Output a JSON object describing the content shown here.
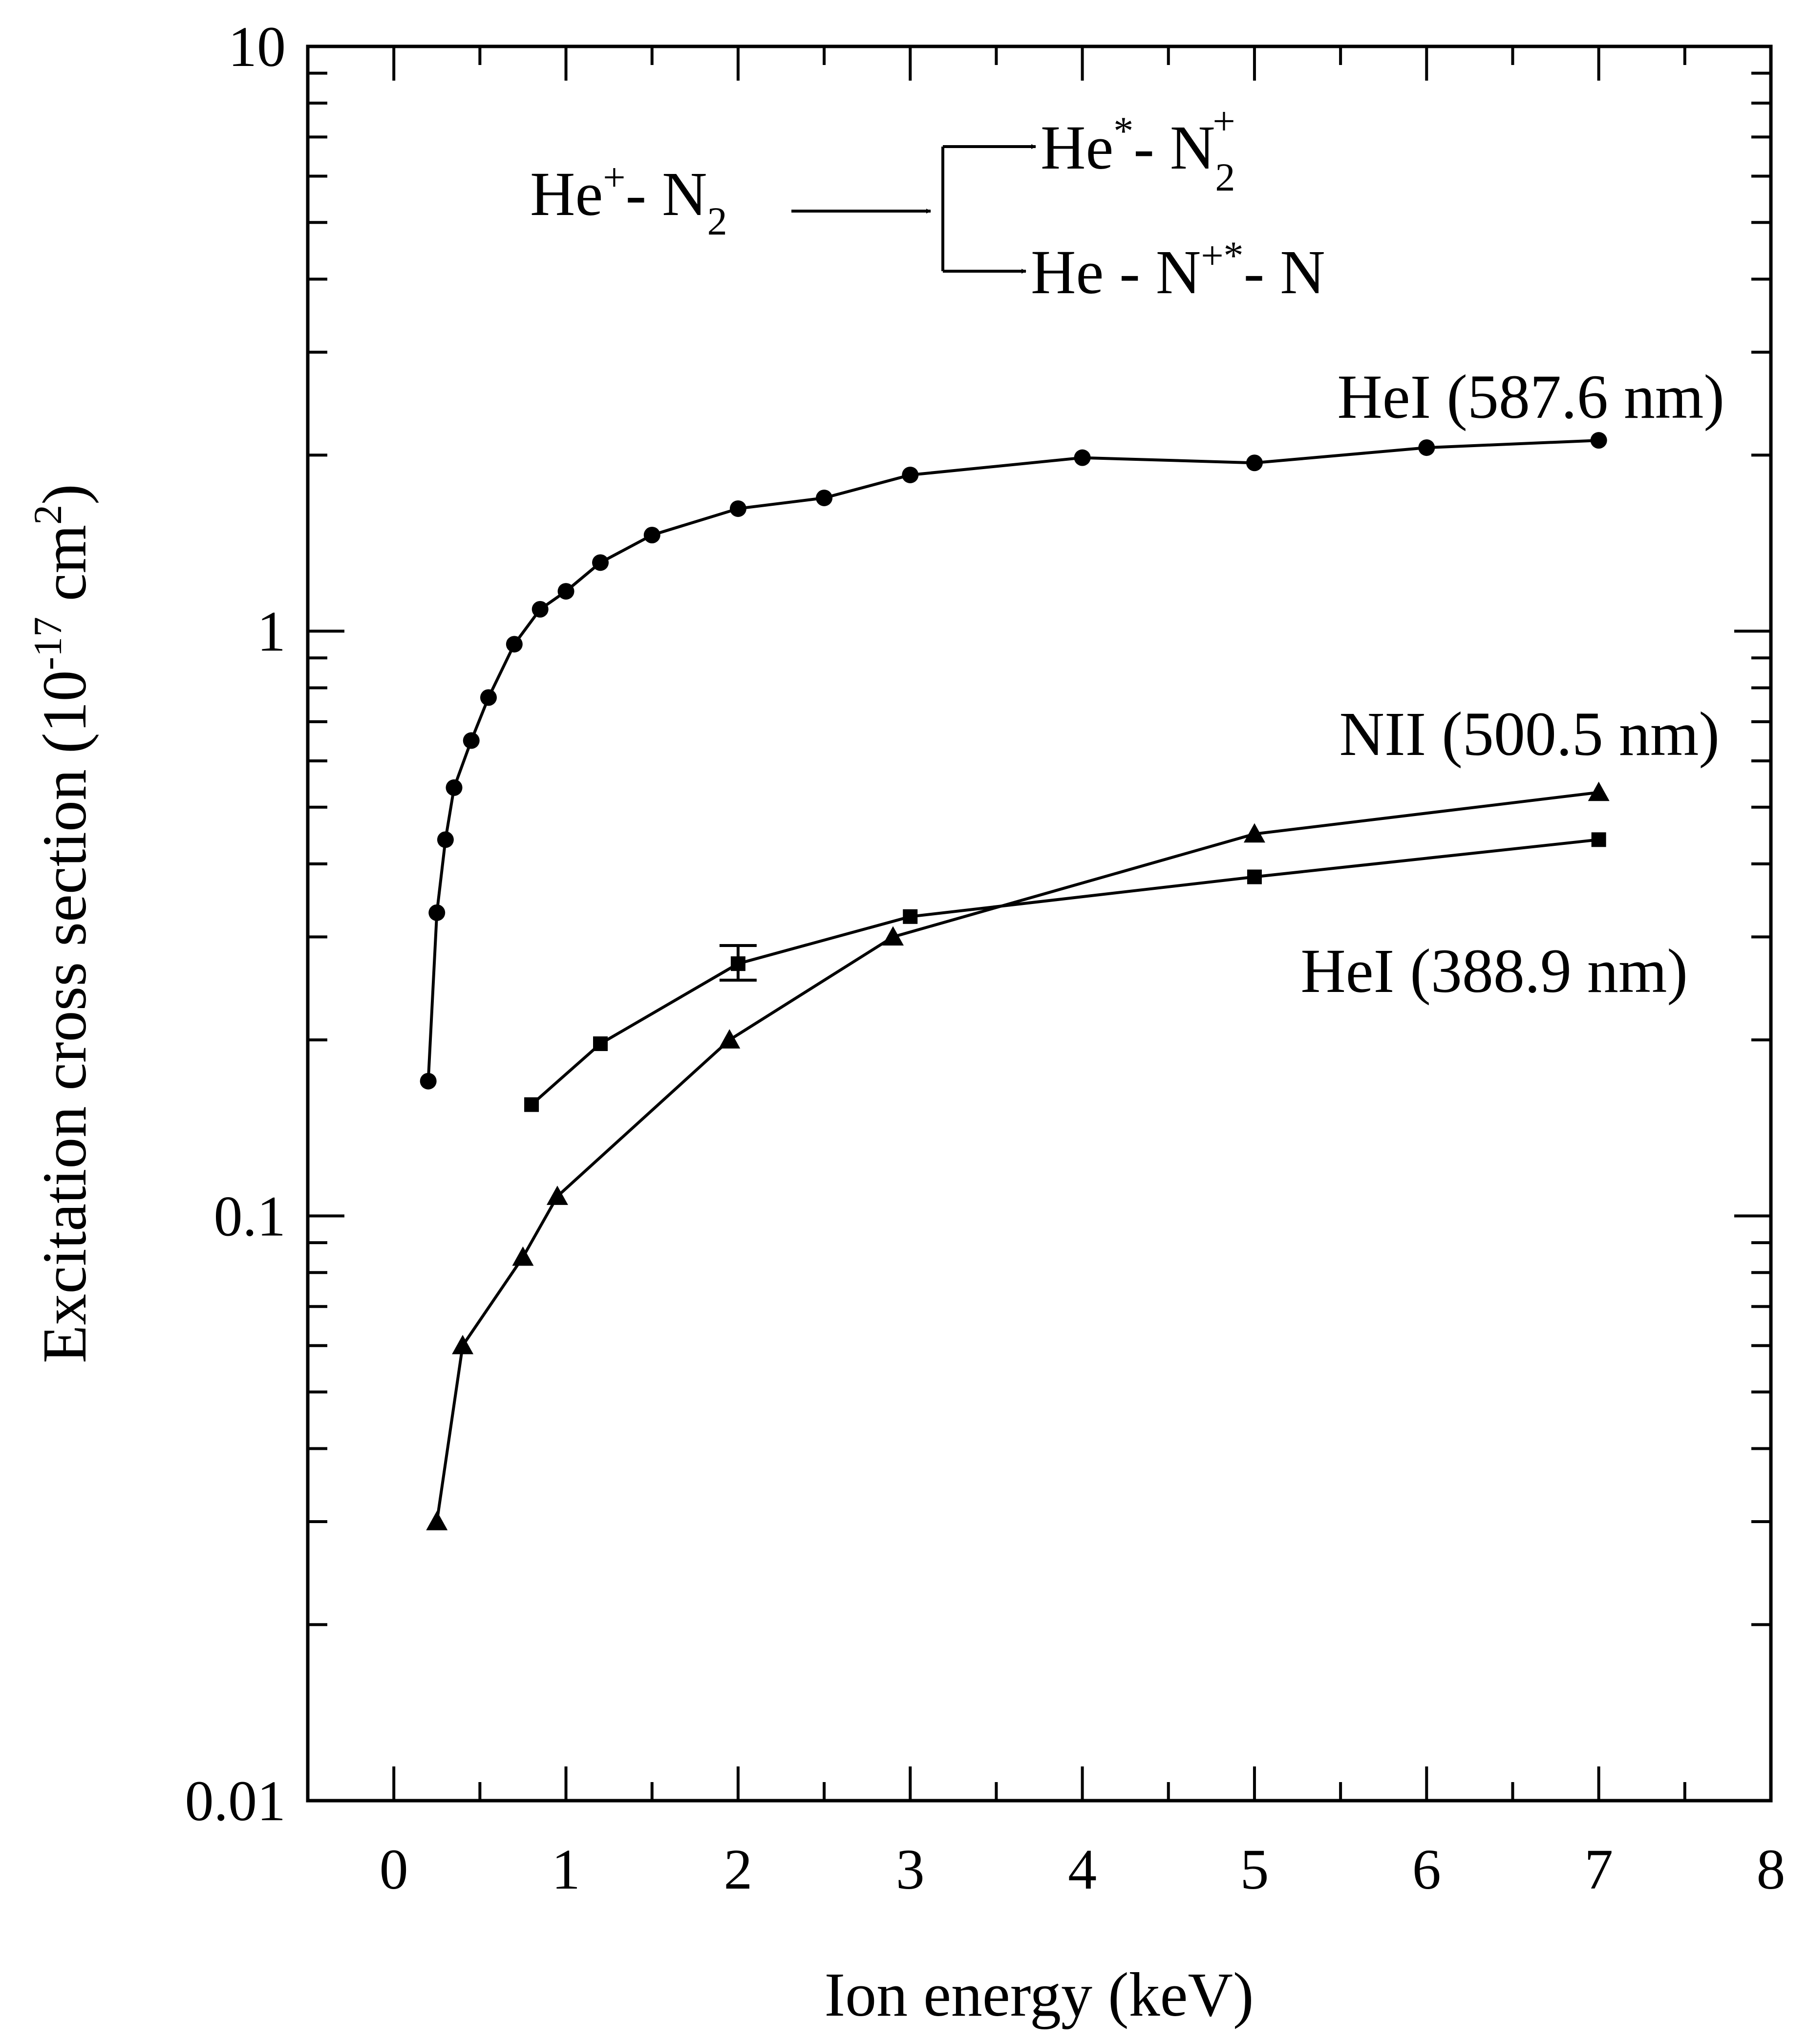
{
  "chart_data": {
    "type": "line",
    "xlabel": "Ion energy (keV)",
    "ylabel": {
      "base": "Excitation cross section (10",
      "exp": "-17",
      "mid": " cm",
      "exp2": "2",
      "end": ")"
    },
    "xlim": [
      -0.5,
      8
    ],
    "ylim": [
      0.01,
      10
    ],
    "yscale": "log",
    "grid": false,
    "x_ticks": [
      0,
      1,
      2,
      3,
      4,
      5,
      6,
      7,
      8
    ],
    "x_tick_labels": [
      "0",
      "1",
      "2",
      "3",
      "4",
      "5",
      "6",
      "7",
      "8"
    ],
    "y_ticks": [
      0.01,
      0.1,
      1,
      10
    ],
    "y_tick_labels": [
      "0.01",
      "0.1",
      "1",
      "10"
    ],
    "series": [
      {
        "name": "HeI (587.6 nm)",
        "marker": "circle",
        "x": [
          0.2,
          0.25,
          0.3,
          0.35,
          0.45,
          0.55,
          0.7,
          0.85,
          1.0,
          1.2,
          1.5,
          2.0,
          2.5,
          3.0,
          4.0,
          5.0,
          6.0,
          7.0
        ],
        "y": [
          0.17,
          0.33,
          0.44,
          0.54,
          0.65,
          0.77,
          0.95,
          1.09,
          1.17,
          1.31,
          1.46,
          1.62,
          1.69,
          1.85,
          1.98,
          1.94,
          2.06,
          2.12
        ]
      },
      {
        "name": "NII (500.5 nm)",
        "marker": "triangle",
        "x": [
          0.25,
          0.4,
          0.75,
          0.95,
          1.95,
          2.9,
          5.0,
          7.0
        ],
        "y": [
          0.03,
          0.06,
          0.085,
          0.108,
          0.2,
          0.3,
          0.45,
          0.53
        ]
      },
      {
        "name": "HeI (388.9 nm)",
        "marker": "square",
        "x": [
          0.8,
          1.2,
          2.0,
          3.0,
          5.0,
          7.0
        ],
        "y": [
          0.155,
          0.197,
          0.27,
          0.325,
          0.38,
          0.44
        ],
        "error_bar": {
          "x": 2.0,
          "low": 0.253,
          "high": 0.29
        }
      }
    ],
    "annotations": {
      "reaction": {
        "reactant_a": "He",
        "reactant_a_sup": "+",
        "reactant_b": "- N",
        "reactant_b_sub": "2",
        "product1_a": "He",
        "product1_a_sup": "*",
        "product1_b": "- N",
        "product1_b_sub": "2",
        "product1_b_sup": "+",
        "product2_a": "He - N",
        "product2_a_sup": "+*",
        "product2_b": "- N"
      }
    }
  }
}
